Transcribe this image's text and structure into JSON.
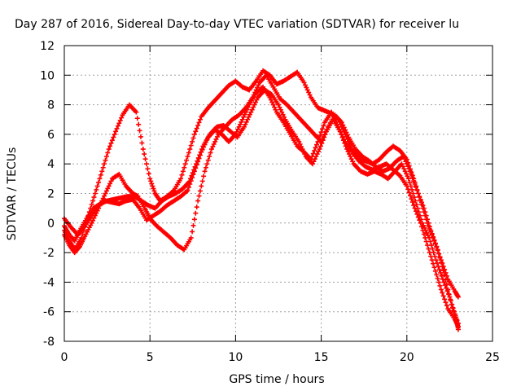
{
  "chart_data": {
    "type": "scatter",
    "title": "Day 287 of 2016, Sidereal Day-to-day VTEC variation (SDTVAR) for receiver lu",
    "xlabel": "GPS time / hours",
    "ylabel": "SDTVAR / TECUs",
    "xlim": [
      0,
      25
    ],
    "ylim": [
      -8,
      12
    ],
    "xticks": [
      "0",
      "5",
      "10",
      "15",
      "20",
      "25"
    ],
    "yticks": [
      "-8",
      "-6",
      "-4",
      "-2",
      "0",
      "2",
      "4",
      "6",
      "8",
      "10",
      "12"
    ],
    "grid": true,
    "marker": "plus",
    "color": "#ff0000",
    "series": [
      {
        "x": [
          0.0,
          0.3,
          0.6,
          1.0,
          1.4,
          1.8,
          2.2,
          2.6,
          3.0,
          3.4,
          3.8,
          4.2,
          4.6,
          5.0,
          5.3,
          5.6,
          6.0,
          6.4,
          6.8,
          7.2,
          7.6,
          8.0,
          8.4,
          8.8,
          9.2,
          9.6,
          10.0,
          10.4,
          10.8,
          11.2,
          11.6,
          12.0,
          12.4,
          12.8,
          13.2,
          13.6,
          14.0,
          14.4,
          14.8,
          15.2,
          15.6,
          16.0,
          16.4,
          16.8,
          17.2,
          17.6,
          18.0,
          18.4,
          18.8,
          19.2,
          19.6,
          20.0,
          20.4,
          20.8,
          21.2,
          21.6,
          22.0,
          22.4,
          22.8,
          23.0
        ],
        "y": [
          -0.5,
          -1.2,
          -1.8,
          -1.0,
          0.5,
          2.0,
          3.5,
          5.0,
          6.2,
          7.3,
          8.0,
          7.5,
          5.0,
          3.0,
          2.0,
          1.5,
          1.8,
          2.2,
          3.0,
          4.5,
          6.0,
          7.2,
          7.8,
          8.3,
          8.8,
          9.3,
          9.6,
          9.2,
          9.0,
          9.6,
          10.3,
          10.0,
          9.4,
          9.6,
          9.9,
          10.2,
          9.5,
          8.5,
          7.8,
          7.6,
          7.4,
          7.0,
          6.0,
          5.0,
          4.4,
          4.2,
          4.0,
          4.3,
          4.8,
          5.2,
          4.9,
          4.3,
          3.0,
          1.5,
          0.0,
          -1.2,
          -2.5,
          -3.8,
          -4.6,
          -5.0
        ]
      },
      {
        "x": [
          0.0,
          0.3,
          0.6,
          0.9,
          1.2,
          1.6,
          2.0,
          2.4,
          2.8,
          3.2,
          3.6,
          4.0,
          4.3,
          4.7,
          5.0,
          5.4,
          5.8,
          6.2,
          6.6,
          7.0,
          7.4,
          7.8,
          8.2,
          8.6,
          9.0,
          9.4,
          9.8,
          10.2,
          10.6,
          11.0,
          11.4,
          11.8,
          12.2,
          12.6,
          13.0,
          13.4,
          13.8,
          14.2,
          14.6,
          15.0,
          15.4,
          15.8,
          16.2,
          16.6,
          17.0,
          17.4,
          17.8,
          18.2,
          18.6,
          19.0,
          19.4,
          19.8,
          20.2,
          20.6,
          21.0,
          21.4,
          21.8,
          22.2,
          22.6,
          23.0
        ],
        "y": [
          -0.8,
          -1.5,
          -2.0,
          -1.6,
          -0.9,
          0.0,
          1.0,
          2.0,
          3.0,
          3.3,
          2.5,
          2.0,
          1.8,
          1.0,
          0.3,
          -0.2,
          -0.6,
          -1.0,
          -1.5,
          -1.8,
          -1.0,
          1.5,
          3.5,
          5.0,
          6.0,
          6.5,
          7.0,
          7.3,
          7.8,
          8.5,
          9.5,
          10.0,
          9.2,
          8.4,
          8.0,
          7.5,
          7.0,
          6.5,
          6.0,
          5.5,
          6.5,
          7.3,
          6.8,
          5.8,
          5.0,
          4.5,
          4.2,
          3.8,
          3.5,
          3.7,
          4.2,
          4.5,
          3.5,
          2.2,
          1.0,
          -0.5,
          -1.8,
          -3.5,
          -5.5,
          -6.8
        ]
      },
      {
        "x": [
          0.0,
          0.3,
          0.6,
          0.9,
          1.3,
          1.7,
          2.1,
          2.5,
          2.9,
          3.3,
          3.7,
          4.1,
          4.5,
          4.9,
          5.3,
          5.7,
          6.1,
          6.5,
          6.9,
          7.3,
          7.7,
          8.1,
          8.5,
          8.9,
          9.3,
          9.7,
          10.1,
          10.5,
          10.9,
          11.3,
          11.7,
          12.1,
          12.5,
          12.9,
          13.3,
          13.7,
          14.1,
          14.5,
          14.9,
          15.3,
          15.7,
          16.1,
          16.5,
          16.9,
          17.3,
          17.7,
          18.1,
          18.5,
          18.9,
          19.3,
          19.7,
          20.1,
          20.5,
          20.9,
          21.3,
          21.7,
          22.1,
          22.5,
          22.9,
          23.0
        ],
        "y": [
          -0.2,
          -0.8,
          -1.2,
          -0.5,
          0.3,
          1.0,
          1.3,
          1.5,
          1.6,
          1.7,
          1.8,
          1.8,
          1.5,
          1.2,
          1.0,
          1.5,
          1.8,
          2.0,
          2.3,
          2.8,
          4.0,
          5.2,
          6.0,
          6.5,
          6.6,
          6.2,
          5.8,
          6.5,
          7.5,
          8.5,
          9.0,
          8.7,
          8.0,
          7.0,
          6.2,
          5.5,
          4.5,
          4.0,
          5.0,
          6.2,
          7.0,
          6.2,
          5.0,
          4.0,
          3.5,
          3.3,
          3.5,
          3.3,
          3.0,
          3.5,
          4.0,
          3.0,
          1.5,
          0.0,
          -1.0,
          -2.5,
          -3.8,
          -5.0,
          -6.5,
          -7.2
        ]
      },
      {
        "x": [
          0.0,
          0.4,
          0.8,
          1.2,
          1.6,
          2.0,
          2.4,
          2.8,
          3.2,
          3.6,
          4.0,
          4.4,
          4.8,
          5.2,
          5.6,
          6.0,
          6.4,
          6.8,
          7.2,
          7.6,
          8.0,
          8.4,
          8.8,
          9.2,
          9.6,
          10.0,
          10.4,
          10.8,
          11.2,
          11.6,
          12.0,
          12.4,
          12.8,
          13.2,
          13.6,
          14.0,
          14.4,
          14.8,
          15.2,
          15.6,
          16.0,
          16.4,
          16.8,
          17.2,
          17.6,
          18.0,
          18.4,
          18.8,
          19.2,
          19.6,
          20.0,
          20.4,
          20.8,
          21.2,
          21.6,
          22.0,
          22.4,
          22.8,
          23.0
        ],
        "y": [
          0.3,
          -0.3,
          -0.8,
          -0.2,
          0.5,
          1.2,
          1.5,
          1.4,
          1.3,
          1.5,
          1.6,
          1.0,
          0.2,
          0.5,
          0.8,
          1.2,
          1.5,
          1.8,
          2.2,
          3.5,
          4.8,
          5.8,
          6.3,
          6.0,
          5.5,
          6.0,
          7.0,
          8.0,
          8.8,
          9.2,
          8.5,
          7.5,
          6.8,
          6.0,
          5.2,
          4.8,
          4.3,
          5.5,
          6.8,
          7.5,
          6.5,
          5.5,
          4.8,
          4.2,
          3.8,
          3.6,
          3.8,
          4.0,
          3.6,
          3.2,
          2.5,
          1.2,
          0.0,
          -1.5,
          -3.0,
          -4.5,
          -5.8,
          -6.5,
          -7.0
        ]
      }
    ]
  }
}
